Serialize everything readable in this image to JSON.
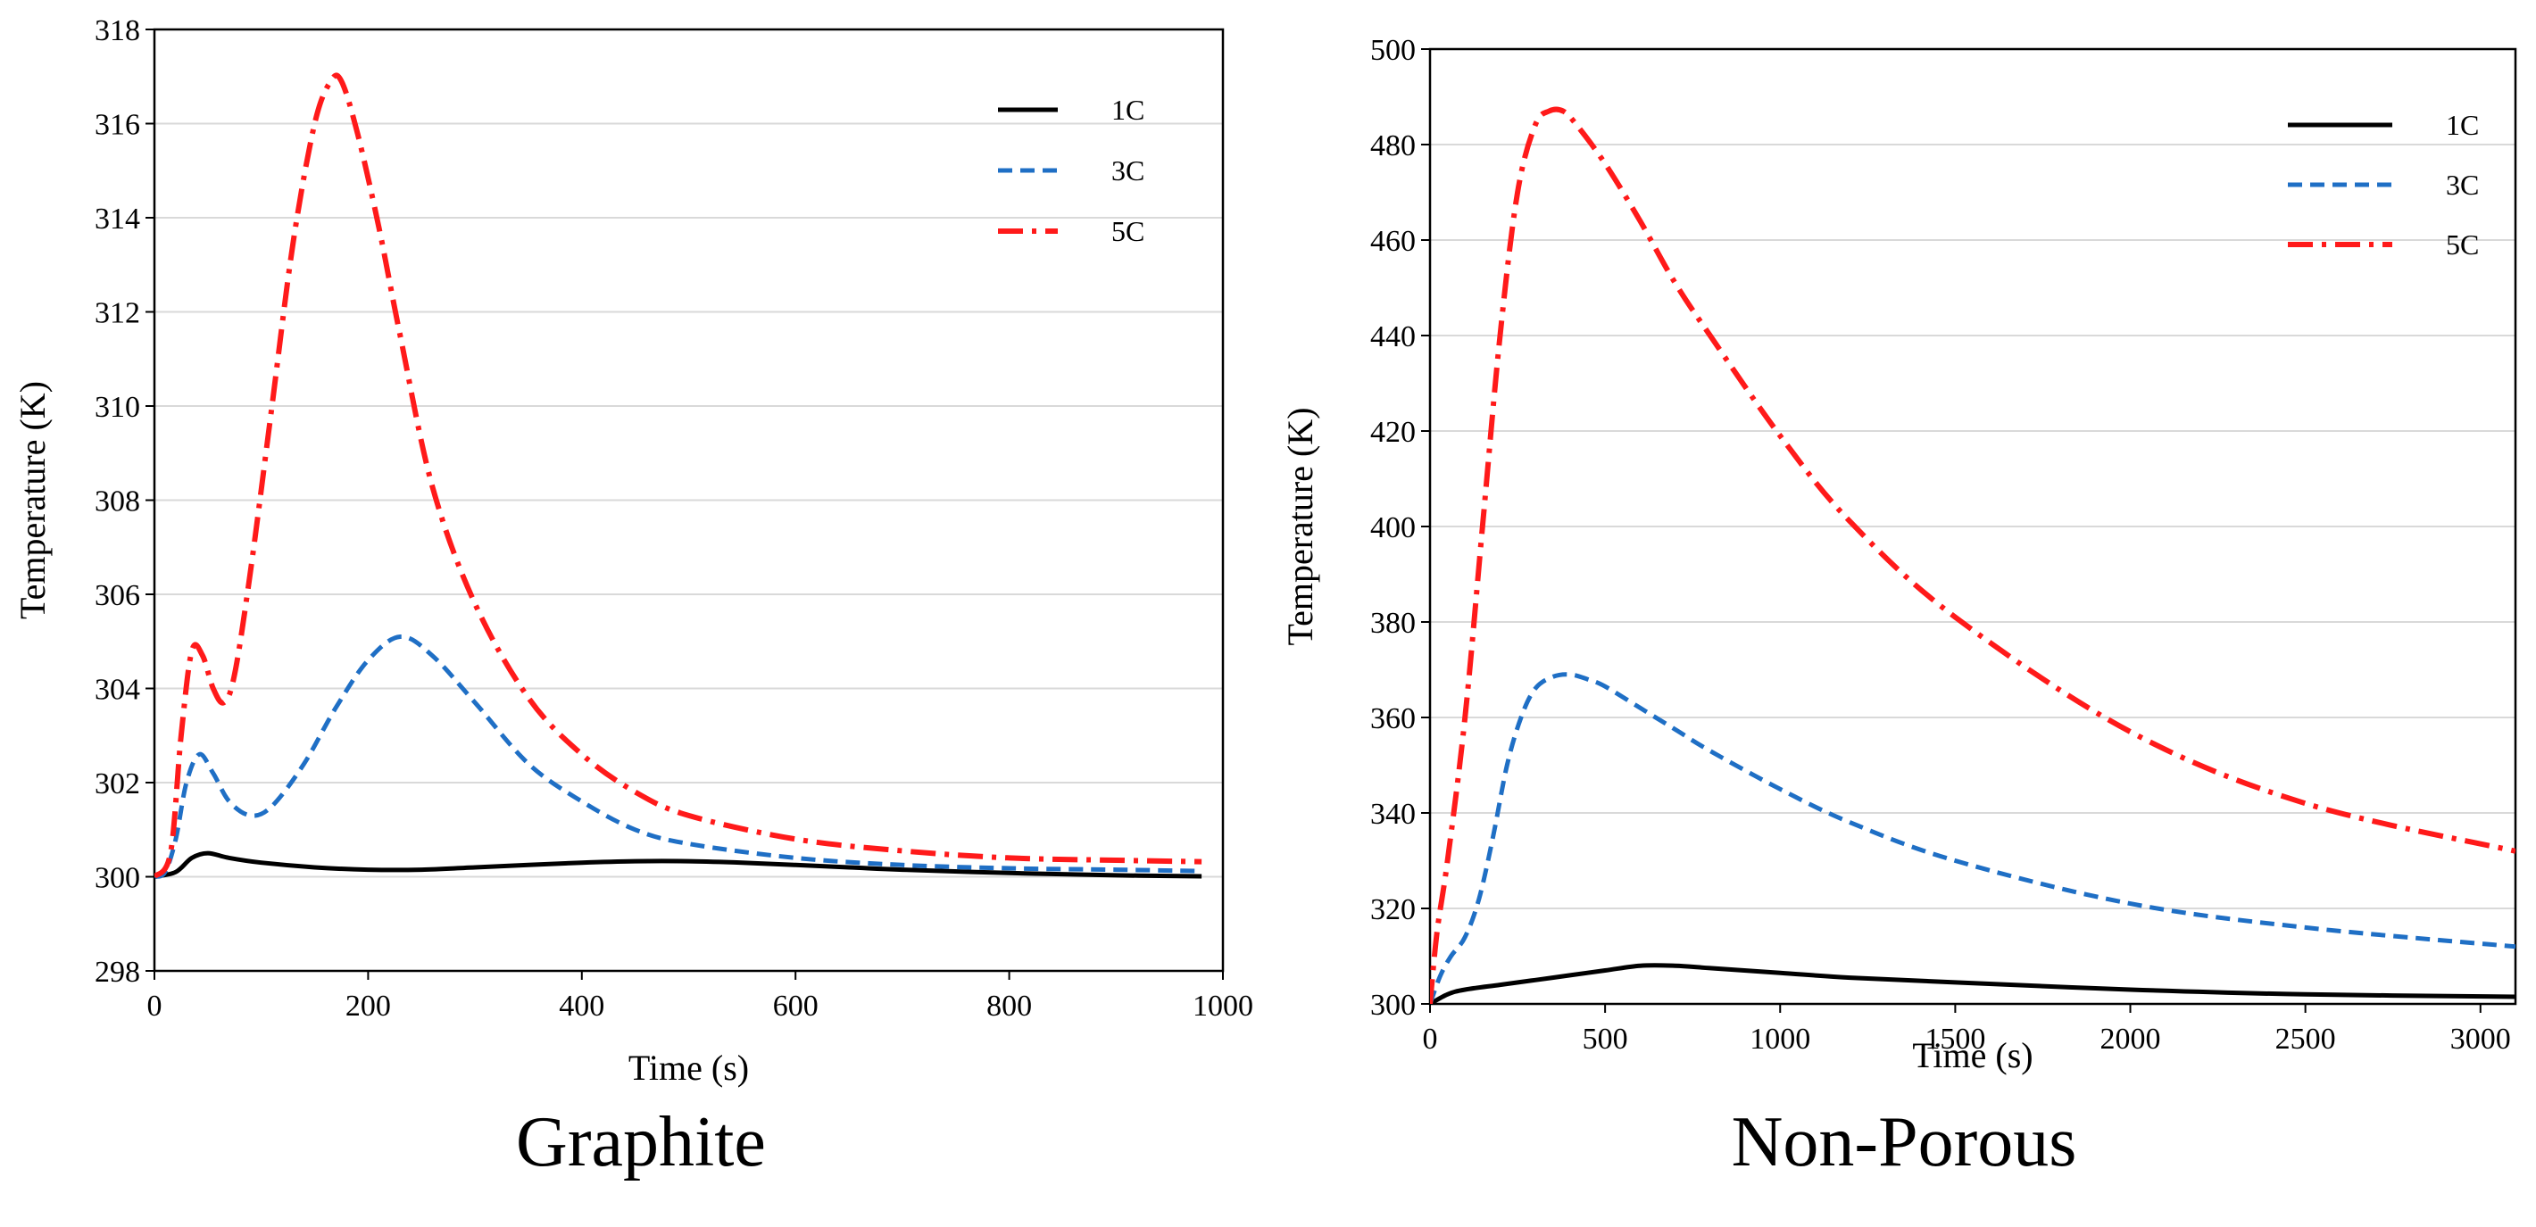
{
  "chart_data": [
    {
      "type": "line",
      "caption": "Graphite",
      "xlabel": "Time (s)",
      "ylabel": "Temperature (K)",
      "xlim": [
        0,
        1000
      ],
      "ylim": [
        298,
        318
      ],
      "xticks": [
        0,
        200,
        400,
        600,
        800,
        1000
      ],
      "yticks": [
        298,
        300,
        302,
        304,
        306,
        308,
        310,
        312,
        314,
        316,
        318
      ],
      "grid": "horizontal",
      "legend_position": "top-right",
      "series": [
        {
          "name": "1C",
          "color": "#000000",
          "style": "solid",
          "x": [
            0,
            20,
            35,
            50,
            70,
            100,
            150,
            200,
            250,
            300,
            350,
            400,
            450,
            500,
            550,
            600,
            650,
            700,
            800,
            900,
            980
          ],
          "y": [
            300.0,
            300.1,
            300.4,
            300.5,
            300.4,
            300.3,
            300.2,
            300.15,
            300.15,
            300.2,
            300.25,
            300.3,
            300.33,
            300.33,
            300.3,
            300.25,
            300.2,
            300.15,
            300.08,
            300.03,
            300.01
          ]
        },
        {
          "name": "3C",
          "color": "#1f6fc5",
          "style": "dashed",
          "x": [
            0,
            10,
            20,
            30,
            42,
            55,
            70,
            90,
            110,
            140,
            170,
            200,
            230,
            260,
            300,
            350,
            400,
            450,
            500,
            600,
            700,
            800,
            900,
            980
          ],
          "y": [
            300.0,
            300.1,
            300.8,
            302.0,
            302.6,
            302.2,
            301.6,
            301.3,
            301.5,
            302.4,
            303.6,
            304.6,
            305.1,
            304.7,
            303.7,
            302.4,
            301.6,
            301.0,
            300.7,
            300.4,
            300.25,
            300.18,
            300.15,
            300.12
          ]
        },
        {
          "name": "5C",
          "color": "#ff1a1a",
          "style": "dashdot",
          "x": [
            0,
            15,
            25,
            35,
            45,
            55,
            65,
            75,
            90,
            110,
            130,
            150,
            165,
            175,
            190,
            210,
            230,
            260,
            300,
            350,
            400,
            450,
            500,
            600,
            700,
            800,
            900,
            980
          ],
          "y": [
            300.0,
            300.5,
            303.0,
            304.8,
            304.7,
            304.0,
            303.7,
            304.3,
            306.5,
            310.0,
            313.5,
            316.0,
            316.9,
            316.9,
            315.8,
            313.8,
            311.5,
            308.3,
            305.8,
            303.8,
            302.6,
            301.8,
            301.3,
            300.8,
            300.55,
            300.4,
            300.35,
            300.32
          ]
        }
      ]
    },
    {
      "type": "line",
      "caption": "Non-Porous",
      "xlabel": "Time (s)",
      "ylabel": "Temperature (K)",
      "xlim": [
        0,
        3100
      ],
      "ylim": [
        300,
        500
      ],
      "xticks": [
        0,
        500,
        1000,
        1500,
        2000,
        2500,
        3000
      ],
      "yticks": [
        300,
        320,
        340,
        360,
        380,
        400,
        420,
        440,
        460,
        480,
        500
      ],
      "grid": "horizontal",
      "legend_position": "top-right",
      "series": [
        {
          "name": "1C",
          "color": "#000000",
          "style": "solid",
          "x": [
            0,
            50,
            100,
            200,
            300,
            400,
            500,
            600,
            700,
            800,
            1000,
            1200,
            1500,
            2000,
            2500,
            3100
          ],
          "y": [
            300,
            302,
            303,
            304,
            305,
            306,
            307,
            308,
            308,
            307.5,
            306.5,
            305.5,
            304.5,
            303,
            302,
            301.5
          ]
        },
        {
          "name": "3C",
          "color": "#1f6fc5",
          "style": "dashed",
          "x": [
            0,
            30,
            60,
            100,
            140,
            180,
            220,
            260,
            300,
            350,
            400,
            450,
            500,
            600,
            700,
            800,
            1000,
            1200,
            1500,
            2000,
            2500,
            3100
          ],
          "y": [
            300,
            306,
            310,
            314,
            322,
            335,
            350,
            360,
            366,
            368.5,
            369,
            368,
            366.5,
            362,
            357.5,
            353,
            345,
            338,
            330,
            321,
            316,
            312
          ]
        },
        {
          "name": "5C",
          "color": "#ff1a1a",
          "style": "dashdot",
          "x": [
            0,
            20,
            50,
            100,
            150,
            200,
            250,
            300,
            340,
            380,
            420,
            500,
            600,
            700,
            800,
            1000,
            1200,
            1500,
            2000,
            2500,
            3100
          ],
          "y": [
            300,
            315,
            330,
            360,
            400,
            440,
            470,
            484,
            487,
            487,
            484,
            476,
            464,
            451,
            440,
            419,
            401,
            381,
            357,
            342,
            332
          ]
        }
      ]
    }
  ]
}
